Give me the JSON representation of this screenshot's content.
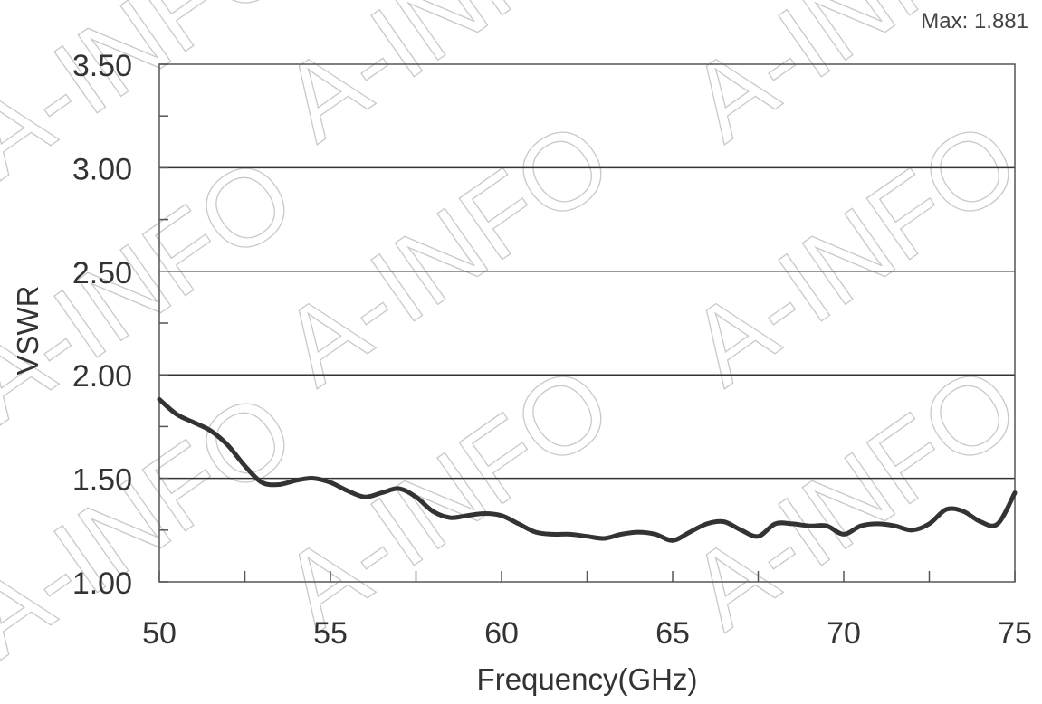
{
  "chart_data": {
    "type": "line",
    "title": "",
    "xlabel": "Frequency(GHz)",
    "ylabel": "VSWR",
    "xlim": [
      50,
      75
    ],
    "ylim": [
      1.0,
      3.5
    ],
    "x_ticks": [
      "50",
      "55",
      "60",
      "65",
      "70",
      "75"
    ],
    "y_ticks": [
      "1.00",
      "1.50",
      "2.00",
      "2.50",
      "3.00",
      "3.50"
    ],
    "grid": "horizontal",
    "annotation": "Max: 1.881",
    "watermark": "A-INFO",
    "line_color": "#333333",
    "series": [
      {
        "x": [
          50,
          50.5,
          51,
          51.5,
          52,
          52.5,
          53,
          53.5,
          54,
          54.5,
          55,
          55.5,
          56,
          56.5,
          57,
          57.5,
          58,
          58.5,
          59,
          59.5,
          60,
          60.5,
          61,
          61.5,
          62,
          62.5,
          63,
          63.5,
          64,
          64.5,
          65,
          65.5,
          66,
          66.5,
          67,
          67.5,
          68,
          68.5,
          69,
          69.5,
          70,
          70.5,
          71,
          71.5,
          72,
          72.5,
          73,
          73.5,
          74,
          74.5,
          75
        ],
        "y": [
          1.881,
          1.81,
          1.77,
          1.73,
          1.66,
          1.56,
          1.48,
          1.47,
          1.49,
          1.5,
          1.48,
          1.44,
          1.41,
          1.43,
          1.45,
          1.41,
          1.34,
          1.31,
          1.32,
          1.33,
          1.32,
          1.28,
          1.24,
          1.23,
          1.23,
          1.22,
          1.21,
          1.23,
          1.24,
          1.23,
          1.2,
          1.24,
          1.28,
          1.29,
          1.25,
          1.22,
          1.28,
          1.28,
          1.27,
          1.27,
          1.23,
          1.27,
          1.28,
          1.27,
          1.25,
          1.28,
          1.35,
          1.34,
          1.29,
          1.28,
          1.43
        ]
      }
    ]
  }
}
